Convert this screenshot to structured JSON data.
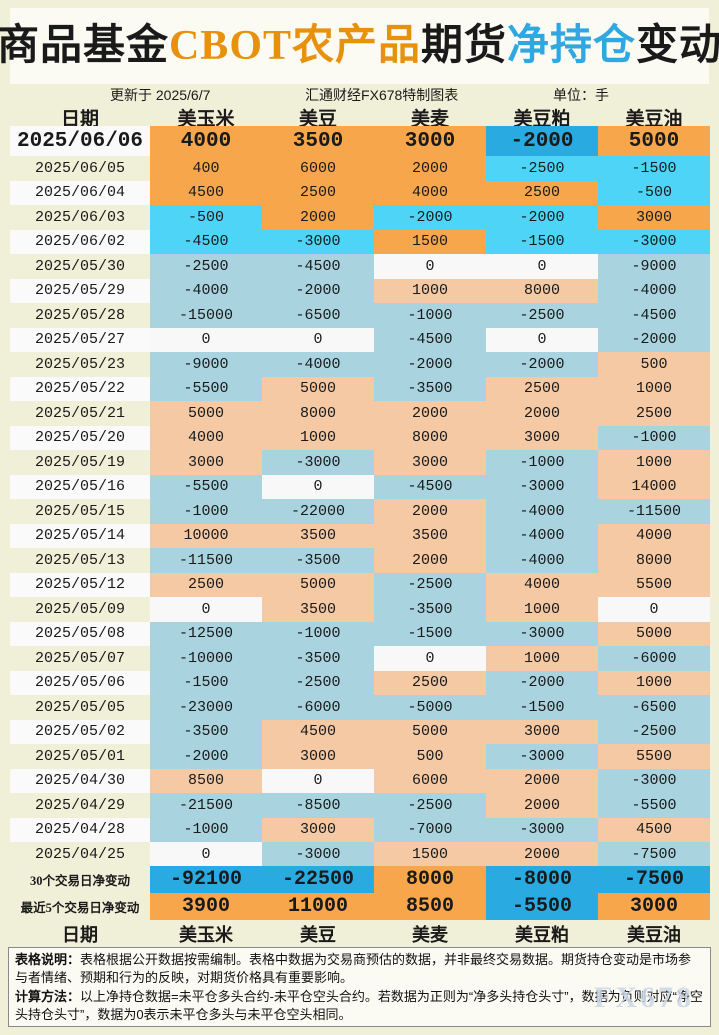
{
  "title": {
    "segments": [
      {
        "text": "商品基金",
        "color": "#1a1a1a"
      },
      {
        "text": "CBOT农产品",
        "color": "#E8910D"
      },
      {
        "text": "期货",
        "color": "#1a1a1a"
      },
      {
        "text": "净持仓",
        "color": "#2FA8E1"
      },
      {
        "text": "变动",
        "color": "#1a1a1a"
      }
    ]
  },
  "meta": {
    "updated": "更新于 2025/6/7",
    "source": "汇通财经FX678特制图表",
    "unit": "单位：手"
  },
  "colors": {
    "page_bg": "#F0EFD8",
    "panel_bg": "#FBFAF3",
    "strong_pos": "#F7A64B",
    "strong_neg": "#29ABE2",
    "bright_pos": "#F7A64B",
    "bright_neg": "#4ED4F7",
    "muted_pos": "#F4C9A4",
    "muted_neg": "#A9D3DF",
    "zero_bg": "#F8F8F8",
    "date_white": "#FAFAFA",
    "date_cream": "#F0EFD8"
  },
  "chart_data": {
    "type": "table",
    "title": "商品基金CBOT农产品期货净持仓变动",
    "columns": [
      "日期",
      "美玉米",
      "美豆",
      "美麦",
      "美豆粕",
      "美豆油"
    ],
    "rows": [
      [
        "2025/06/06",
        4000,
        3500,
        3000,
        -2000,
        5000
      ],
      [
        "2025/06/05",
        400,
        6000,
        2000,
        -2500,
        -1500
      ],
      [
        "2025/06/04",
        4500,
        2500,
        4000,
        2500,
        -500
      ],
      [
        "2025/06/03",
        -500,
        2000,
        -2000,
        -2000,
        3000
      ],
      [
        "2025/06/02",
        -4500,
        -3000,
        1500,
        -1500,
        -3000
      ],
      [
        "2025/05/30",
        -2500,
        -4500,
        0,
        0,
        -9000
      ],
      [
        "2025/05/29",
        -4000,
        -2000,
        1000,
        8000,
        -4000
      ],
      [
        "2025/05/28",
        -15000,
        -6500,
        -1000,
        -2500,
        -4500
      ],
      [
        "2025/05/27",
        0,
        0,
        -4500,
        0,
        -2000
      ],
      [
        "2025/05/23",
        -9000,
        -4000,
        -2000,
        -2000,
        500
      ],
      [
        "2025/05/22",
        -5500,
        5000,
        -3500,
        2500,
        1000
      ],
      [
        "2025/05/21",
        5000,
        8000,
        2000,
        2000,
        2500
      ],
      [
        "2025/05/20",
        4000,
        1000,
        8000,
        3000,
        -1000
      ],
      [
        "2025/05/19",
        3000,
        -3000,
        3000,
        -1000,
        1000
      ],
      [
        "2025/05/16",
        -5500,
        0,
        -4500,
        -3000,
        14000
      ],
      [
        "2025/05/15",
        -1000,
        -22000,
        2000,
        -4000,
        -11500
      ],
      [
        "2025/05/14",
        10000,
        3500,
        3500,
        -4000,
        4000
      ],
      [
        "2025/05/13",
        -11500,
        -3500,
        2000,
        -4000,
        8000
      ],
      [
        "2025/05/12",
        2500,
        5000,
        -2500,
        4000,
        5500
      ],
      [
        "2025/05/09",
        0,
        3500,
        -3500,
        1000,
        0
      ],
      [
        "2025/05/08",
        -12500,
        -1000,
        -1500,
        -3000,
        5000
      ],
      [
        "2025/05/07",
        -10000,
        -3500,
        0,
        1000,
        -6000
      ],
      [
        "2025/05/06",
        -1500,
        -2500,
        2500,
        -2000,
        1000
      ],
      [
        "2025/05/05",
        -23000,
        -6000,
        -5000,
        -1500,
        -6500
      ],
      [
        "2025/05/02",
        -3500,
        4500,
        5000,
        3000,
        -2500
      ],
      [
        "2025/05/01",
        -2000,
        3000,
        500,
        -3000,
        5500
      ],
      [
        "2025/04/30",
        8500,
        0,
        6000,
        2000,
        -3000
      ],
      [
        "2025/04/29",
        -21500,
        -8500,
        -2500,
        2000,
        -5500
      ],
      [
        "2025/04/28",
        -1000,
        3000,
        -7000,
        -3000,
        4500
      ],
      [
        "2025/04/25",
        0,
        -3000,
        1500,
        2000,
        -7500
      ]
    ],
    "summary_rows": [
      {
        "label": "30个交易日净变动",
        "values": [
          -92100,
          -22500,
          8000,
          -8000,
          -7500
        ]
      },
      {
        "label": "最近5个交易日净变动",
        "values": [
          3900,
          11000,
          8500,
          -5500,
          3000
        ]
      }
    ]
  },
  "footer_note": {
    "p1_label": "表格说明：",
    "p1_text": "表格根据公开数据按需编制。表格中数据为交易商预估的数据，并非最终交易数据。期货持仓变动是市场参与者情绪、预期和行为的反映，对期货价格具有重要影响。",
    "p2_label": "计算方法：",
    "p2_text": "以上净持仓数据=未平仓多头合约-未平仓空头合约。若数据为正则为“净多头持仓头寸”，数据为负则对应“净空头持仓头寸”，数据为0表示未平仓多头与未平仓空头相同。"
  },
  "watermark": "FX678"
}
